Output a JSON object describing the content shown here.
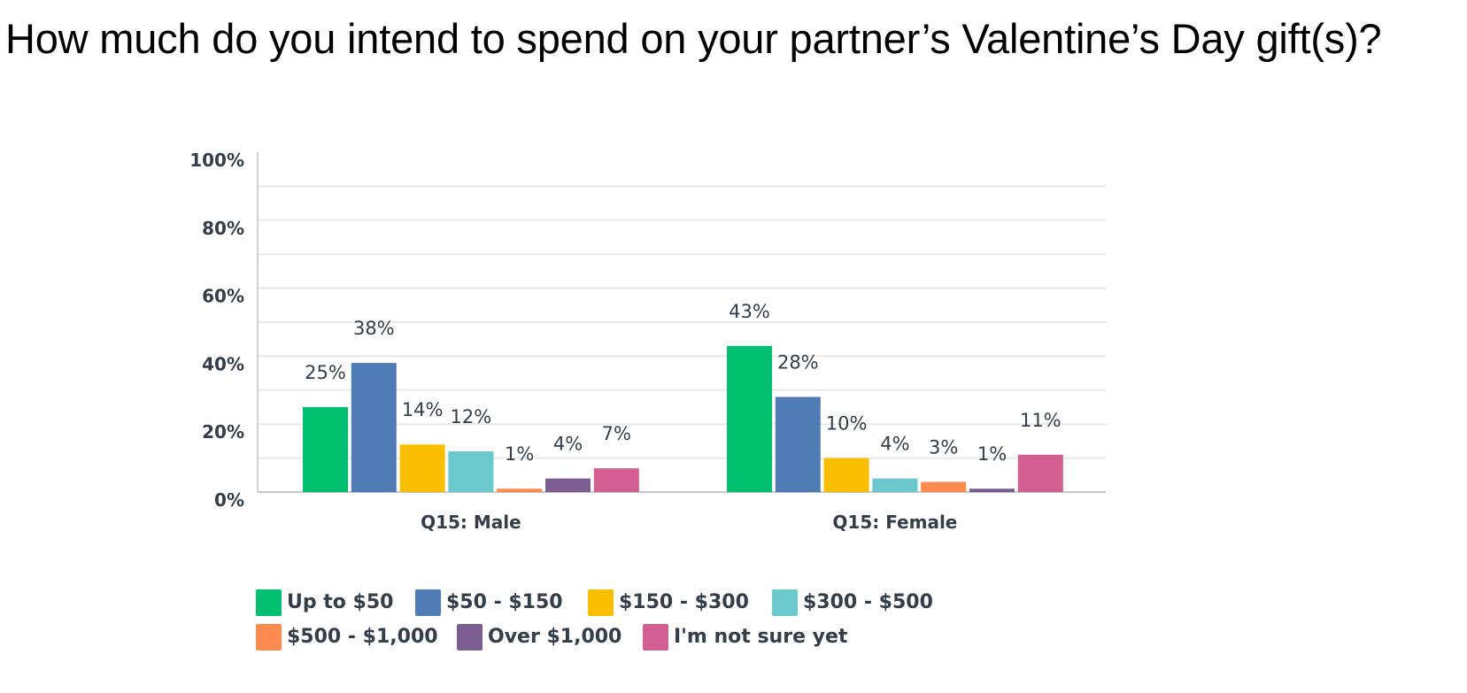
{
  "title": "How much do you intend to spend on your partner’s Valentine’s Day gift(s)?",
  "chart_data": {
    "type": "bar",
    "title": "How much do you intend to spend on your partner’s Valentine’s Day gift(s)?",
    "categories": [
      "Q15: Male",
      "Q15: Female"
    ],
    "ylim": [
      0,
      100
    ],
    "yticks": [
      "0%",
      "20%",
      "40%",
      "60%",
      "80%",
      "100%"
    ],
    "ytick_values": [
      0,
      20,
      40,
      60,
      80,
      100
    ],
    "grid": true,
    "legend_position": "bottom",
    "series": [
      {
        "name": "Up to $50",
        "color": "#00bf6f",
        "values": [
          25,
          43
        ],
        "labels": [
          "25%",
          "43%"
        ]
      },
      {
        "name": "$50 - $150",
        "color": "#507cb6",
        "values": [
          38,
          28
        ],
        "labels": [
          "38%",
          "28%"
        ]
      },
      {
        "name": "$150 - $300",
        "color": "#f9be00",
        "values": [
          14,
          10
        ],
        "labels": [
          "14%",
          "10%"
        ]
      },
      {
        "name": "$300 - $500",
        "color": "#6bc8cd",
        "values": [
          12,
          4
        ],
        "labels": [
          "12%",
          "4%"
        ]
      },
      {
        "name": "$500 - $1,000",
        "color": "#ff8b4f",
        "values": [
          1,
          3
        ],
        "labels": [
          "1%",
          "3%"
        ]
      },
      {
        "name": "Over $1,000",
        "color": "#7d5e90",
        "values": [
          4,
          1
        ],
        "labels": [
          "4%",
          "1%"
        ]
      },
      {
        "name": "I'm not sure yet",
        "color": "#d25f90",
        "values": [
          7,
          11
        ],
        "labels": [
          "7%",
          "11%"
        ]
      }
    ]
  }
}
